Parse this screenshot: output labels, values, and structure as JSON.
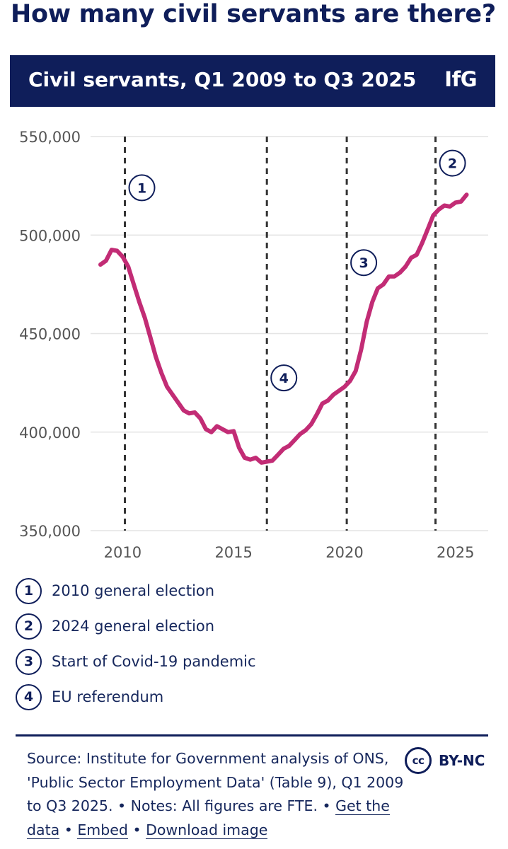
{
  "headline": "How many civil servants are there?",
  "banner": {
    "title": "Civil servants, Q1 2009 to Q3 2025",
    "logo": "IfG"
  },
  "colors": {
    "navy": "#0f1e5a",
    "line": "#c22c75",
    "grid": "#e4e4e4",
    "tick_text": "#555555"
  },
  "chart_data": {
    "type": "line",
    "title": "",
    "xlabel": "",
    "ylabel": "",
    "xlim": [
      2009.0,
      2025.9
    ],
    "ylim": [
      350000,
      550000
    ],
    "grid": true,
    "y_ticks": [
      {
        "value": 350000,
        "label": "350,000"
      },
      {
        "value": 400000,
        "label": "400,000"
      },
      {
        "value": 450000,
        "label": "450,000"
      },
      {
        "value": 500000,
        "label": "500,000"
      },
      {
        "value": 550000,
        "label": "550,000"
      }
    ],
    "x_ticks": [
      {
        "value": 2010,
        "label": "2010"
      },
      {
        "value": 2015,
        "label": "2015"
      },
      {
        "value": 2020,
        "label": "2020"
      },
      {
        "value": 2025,
        "label": "2025"
      }
    ],
    "series": [
      {
        "x": [
          2009.0,
          2009.25,
          2009.5,
          2009.75,
          2010.0,
          2010.25,
          2010.5,
          2010.75,
          2011.0,
          2011.25,
          2011.5,
          2011.75,
          2012.0,
          2012.25,
          2012.5,
          2012.75,
          2013.0,
          2013.25,
          2013.5,
          2013.75,
          2014.0,
          2014.25,
          2014.5,
          2014.75,
          2015.0,
          2015.25,
          2015.5,
          2015.75,
          2016.0,
          2016.25,
          2016.5,
          2016.75,
          2017.0,
          2017.25,
          2017.5,
          2017.75,
          2018.0,
          2018.25,
          2018.5,
          2018.75,
          2019.0,
          2019.25,
          2019.5,
          2019.75,
          2020.0,
          2020.25,
          2020.5,
          2020.75,
          2021.0,
          2021.25,
          2021.5,
          2021.75,
          2022.0,
          2022.25,
          2022.5,
          2022.75,
          2023.0,
          2023.25,
          2023.5,
          2023.75,
          2024.0,
          2024.25,
          2024.5,
          2024.75,
          2025.0,
          2025.25,
          2025.5
        ],
        "values": [
          485000,
          487000,
          492500,
          492000,
          489000,
          484000,
          475000,
          466000,
          458000,
          448000,
          438000,
          430000,
          423000,
          419000,
          415000,
          411000,
          409500,
          410000,
          407000,
          401500,
          400000,
          403000,
          401500,
          400000,
          400500,
          392000,
          387000,
          386000,
          387000,
          384500,
          385000,
          385500,
          388500,
          391500,
          393000,
          396000,
          399000,
          401000,
          404000,
          409000,
          414500,
          416000,
          419000,
          421000,
          423000,
          426000,
          431000,
          442000,
          456000,
          466000,
          473000,
          475000,
          479000,
          479000,
          481000,
          484000,
          488500,
          490000,
          496000,
          503000,
          510000,
          513000,
          515000,
          514500,
          516500,
          517000,
          520500
        ]
      }
    ],
    "markers": [
      {
        "x": 2010.1,
        "num": "1",
        "label_y": 524000
      },
      {
        "x": 2024.1,
        "num": "2",
        "label_y": 536500
      },
      {
        "x": 2020.1,
        "num": "3",
        "label_y": 486000
      },
      {
        "x": 2016.5,
        "num": "4",
        "label_y": 427500
      }
    ]
  },
  "legend": [
    {
      "num": "1",
      "label": "2010 general election"
    },
    {
      "num": "2",
      "label": "2024 general election"
    },
    {
      "num": "3",
      "label": "Start of Covid-19 pandemic"
    },
    {
      "num": "4",
      "label": "EU referendum"
    }
  ],
  "source": {
    "text": "Source: Institute for Government analysis of ONS, 'Public Sector Employment Data' (Table 9), Q1 2009 to Q3 2025. • Notes: All figures are FTE. •",
    "sep": "•",
    "links": [
      "Get the data",
      "Embed",
      "Download image"
    ]
  },
  "license": {
    "icon": "cc",
    "text": "BY-NC"
  }
}
